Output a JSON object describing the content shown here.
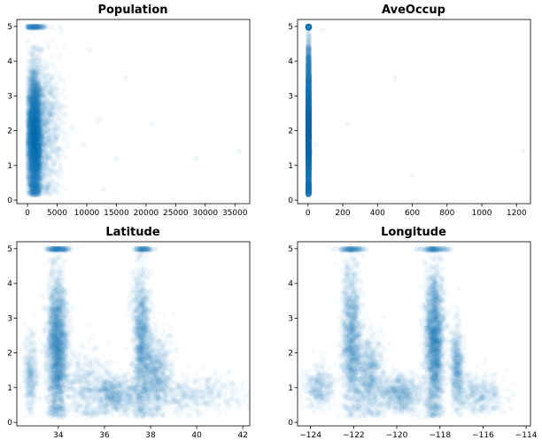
{
  "chart_data": [
    {
      "type": "scatter",
      "title": "Population",
      "xlabel": "",
      "ylabel": "",
      "xlim": [
        -1800,
        37500
      ],
      "ylim": [
        -0.1,
        5.2
      ],
      "xticks": [
        0,
        5000,
        10000,
        15000,
        20000,
        25000,
        30000,
        35000
      ],
      "xtick_labels": [
        "0",
        "5000",
        "10000",
        "15000",
        "20000",
        "25000",
        "30000",
        "35000"
      ],
      "yticks": [
        0,
        1,
        2,
        3,
        4,
        5
      ],
      "ytick_labels": [
        "0",
        "1",
        "2",
        "3",
        "4",
        "5"
      ],
      "color": "#1f77b4",
      "alpha": 0.03,
      "grid": false,
      "clusters": [
        {
          "x_center": 1200,
          "x_spread": 550,
          "y_center": 1.8,
          "y_spread": 0.9,
          "weight": 0.8
        },
        {
          "x_center": 2800,
          "x_spread": 1600,
          "y_center": 2.0,
          "y_spread": 1.1,
          "weight": 0.17
        },
        {
          "x_center": 1100,
          "x_spread": 900,
          "y_center": 5.0,
          "y_spread": 0.0,
          "weight": 0.03
        }
      ],
      "outliers": [
        [
          9500,
          1.6
        ],
        [
          12000,
          2.3
        ],
        [
          16500,
          3.5
        ],
        [
          15000,
          1.2
        ],
        [
          28500,
          1.2
        ],
        [
          35700,
          1.4
        ],
        [
          10500,
          4.3
        ],
        [
          12800,
          0.3
        ],
        [
          21000,
          2.2
        ]
      ]
    },
    {
      "type": "scatter",
      "title": "AveOccup",
      "xlabel": "",
      "ylabel": "",
      "xlim": [
        -60,
        1280
      ],
      "ylim": [
        -0.1,
        5.2
      ],
      "xticks": [
        0,
        200,
        400,
        600,
        800,
        1000,
        1200
      ],
      "xtick_labels": [
        "0",
        "200",
        "400",
        "600",
        "800",
        "1000",
        "1200"
      ],
      "yticks": [
        0,
        1,
        2,
        3,
        4,
        5
      ],
      "ytick_labels": [
        "0",
        "1",
        "2",
        "3",
        "4",
        "5"
      ],
      "color": "#1f77b4",
      "alpha": 0.03,
      "grid": false,
      "clusters": [
        {
          "x_center": 3,
          "x_spread": 2.5,
          "y_center": 2.0,
          "y_spread": 1.1,
          "weight": 0.96
        },
        {
          "x_center": 3,
          "x_spread": 2.5,
          "y_center": 5.0,
          "y_spread": 0.0,
          "weight": 0.04
        }
      ],
      "outliers": [
        [
          50,
          1.6
        ],
        [
          230,
          2.2
        ],
        [
          500,
          3.5
        ],
        [
          600,
          0.7
        ],
        [
          1240,
          1.4
        ],
        [
          80,
          4.9
        ]
      ]
    },
    {
      "type": "scatter",
      "title": "Latitude",
      "xlabel": "",
      "ylabel": "",
      "xlim": [
        32.2,
        42.3
      ],
      "ylim": [
        -0.1,
        5.2
      ],
      "xticks": [
        34,
        36,
        38,
        40,
        42
      ],
      "xtick_labels": [
        "34",
        "36",
        "38",
        "40",
        "42"
      ],
      "yticks": [
        0,
        1,
        2,
        3,
        4,
        5
      ],
      "ytick_labels": [
        "0",
        "1",
        "2",
        "3",
        "4",
        "5"
      ],
      "color": "#1f77b4",
      "alpha": 0.03,
      "grid": false,
      "clusters": [
        {
          "x_center": 33.95,
          "x_spread": 0.22,
          "y_center": 2.2,
          "y_spread": 1.1,
          "weight": 0.36
        },
        {
          "x_center": 32.8,
          "x_spread": 0.15,
          "y_center": 1.4,
          "y_spread": 0.6,
          "weight": 0.05
        },
        {
          "x_center": 37.6,
          "x_spread": 0.2,
          "y_center": 2.4,
          "y_spread": 1.1,
          "weight": 0.18
        },
        {
          "x_center": 38.2,
          "x_spread": 0.35,
          "y_center": 1.4,
          "y_spread": 0.6,
          "weight": 0.12
        },
        {
          "x_center": 36.5,
          "x_spread": 0.5,
          "y_center": 0.8,
          "y_spread": 0.3,
          "weight": 0.1
        },
        {
          "x_center": 39.8,
          "x_spread": 1.1,
          "y_center": 0.8,
          "y_spread": 0.3,
          "weight": 0.07
        },
        {
          "x_center": 35.2,
          "x_spread": 0.6,
          "y_center": 1.0,
          "y_spread": 0.5,
          "weight": 0.07
        },
        {
          "x_center": 34.0,
          "x_spread": 0.25,
          "y_center": 5.0,
          "y_spread": 0.0,
          "weight": 0.03
        },
        {
          "x_center": 37.7,
          "x_spread": 0.2,
          "y_center": 5.0,
          "y_spread": 0.0,
          "weight": 0.02
        }
      ],
      "outliers": [
        [
          41.8,
          0.6
        ],
        [
          41.6,
          1.1
        ],
        [
          41.0,
          0.8
        ],
        [
          40.5,
          1.2
        ]
      ]
    },
    {
      "type": "scatter",
      "title": "Longitude",
      "xlabel": "",
      "ylabel": "",
      "xlim": [
        -124.6,
        -113.8
      ],
      "ylim": [
        -0.1,
        5.2
      ],
      "xticks": [
        -124,
        -122,
        -120,
        -118,
        -116,
        -114
      ],
      "xtick_labels": [
        "−124",
        "−122",
        "−120",
        "−118",
        "−116",
        "−114"
      ],
      "yticks": [
        0,
        1,
        2,
        3,
        4,
        5
      ],
      "ytick_labels": [
        "0",
        "1",
        "2",
        "3",
        "4",
        "5"
      ],
      "color": "#1f77b4",
      "alpha": 0.03,
      "grid": false,
      "clusters": [
        {
          "x_center": -118.25,
          "x_spread": 0.22,
          "y_center": 2.3,
          "y_spread": 1.1,
          "weight": 0.34
        },
        {
          "x_center": -117.2,
          "x_spread": 0.15,
          "y_center": 1.6,
          "y_spread": 0.6,
          "weight": 0.08
        },
        {
          "x_center": -122.1,
          "x_spread": 0.22,
          "y_center": 2.4,
          "y_spread": 1.1,
          "weight": 0.2
        },
        {
          "x_center": -121.3,
          "x_spread": 0.35,
          "y_center": 1.3,
          "y_spread": 0.6,
          "weight": 0.12
        },
        {
          "x_center": -119.8,
          "x_spread": 0.55,
          "y_center": 0.8,
          "y_spread": 0.3,
          "weight": 0.1
        },
        {
          "x_center": -123.6,
          "x_spread": 0.35,
          "y_center": 1.0,
          "y_spread": 0.3,
          "weight": 0.05
        },
        {
          "x_center": -116.2,
          "x_spread": 0.6,
          "y_center": 0.8,
          "y_spread": 0.3,
          "weight": 0.06
        },
        {
          "x_center": -122.1,
          "x_spread": 0.3,
          "y_center": 5.0,
          "y_spread": 0.0,
          "weight": 0.025
        },
        {
          "x_center": -118.3,
          "x_spread": 0.35,
          "y_center": 5.0,
          "y_spread": 0.0,
          "weight": 0.025
        }
      ],
      "outliers": [
        [
          -124.2,
          0.9
        ],
        [
          -114.6,
          0.8
        ],
        [
          -115.5,
          1.2
        ],
        [
          -114.7,
          0.4
        ]
      ]
    }
  ]
}
